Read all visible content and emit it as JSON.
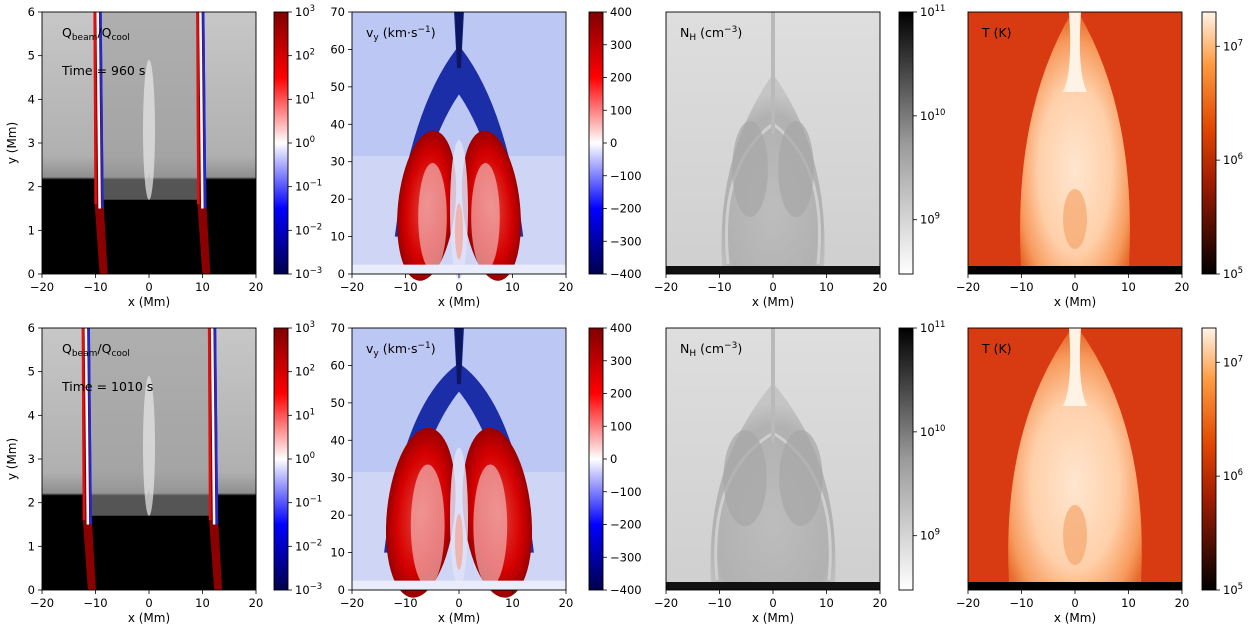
{
  "chart_data": [
    {
      "type": "heatmap",
      "panel_label": "Q<sub>beam</sub>/Q<sub>cool</sub>",
      "label_main": "Q",
      "label_sub1": "beam",
      "label_mid": "/Q",
      "label_sub2": "cool",
      "time_label": "Time = 960 s",
      "xlabel": "x (Mm)",
      "ylabel": "y (Mm)",
      "xlim": [
        -20,
        20
      ],
      "ylim": [
        0,
        6
      ],
      "xticks": [
        "−20",
        "−10",
        "0",
        "10",
        "20"
      ],
      "yticks": [
        "0",
        "1",
        "2",
        "3",
        "4",
        "5",
        "6"
      ],
      "colorbar": {
        "scale": "log",
        "range": [
          0.001,
          1000
        ],
        "ticks": [
          "10",
          "10",
          "10",
          "10",
          "10",
          "10",
          "10"
        ],
        "tick_exp": [
          "−3",
          "−2",
          "−1",
          "0",
          "1",
          "2",
          "3"
        ],
        "cmap": "seismic"
      }
    },
    {
      "type": "heatmap",
      "label_main": "v",
      "label_sub1": "y",
      "label_unit": " (km·s",
      "label_exp": "−1",
      "label_end": ")",
      "xlabel": "x (Mm)",
      "ylabel": "",
      "xlim": [
        -20,
        20
      ],
      "ylim": [
        0,
        70
      ],
      "xticks": [
        "−20",
        "−10",
        "0",
        "10",
        "20"
      ],
      "yticks": [
        "0",
        "10",
        "20",
        "30",
        "40",
        "50",
        "60",
        "70"
      ],
      "colorbar": {
        "scale": "linear",
        "range": [
          -400,
          400
        ],
        "ticks": [
          "−400",
          "−300",
          "−200",
          "−100",
          "0",
          "100",
          "200",
          "300",
          "400"
        ],
        "cmap": "seismic"
      }
    },
    {
      "type": "heatmap",
      "label_main": "N",
      "label_sub1": "H",
      "label_unit": " (cm",
      "label_exp": "−3",
      "label_end": ")",
      "xlabel": "x (Mm)",
      "xlim": [
        -20,
        20
      ],
      "xticks": [
        "−20",
        "−10",
        "0",
        "10",
        "20"
      ],
      "colorbar": {
        "scale": "log",
        "range": [
          300000000,
          100000000000
        ],
        "ticks": [
          "10",
          "10",
          "10"
        ],
        "tick_exp": [
          "9",
          "10",
          "11"
        ],
        "cmap": "Greys"
      }
    },
    {
      "type": "heatmap",
      "label_main": "T (K)",
      "xlabel": "x (Mm)",
      "xlim": [
        -20,
        20
      ],
      "xticks": [
        "−20",
        "−10",
        "0",
        "10",
        "20"
      ],
      "colorbar": {
        "scale": "log",
        "range": [
          100000,
          20000000
        ],
        "ticks": [
          "10",
          "10",
          "10"
        ],
        "tick_exp": [
          "5",
          "6",
          "7"
        ],
        "cmap": "gist_heat"
      }
    },
    {
      "type": "heatmap",
      "label_main": "Q",
      "label_sub1": "beam",
      "label_mid": "/Q",
      "label_sub2": "cool",
      "time_label": "Time = 1010 s",
      "xlabel": "x (Mm)",
      "ylabel": "y (Mm)",
      "xlim": [
        -20,
        20
      ],
      "ylim": [
        0,
        6
      ],
      "xticks": [
        "−20",
        "−10",
        "0",
        "10",
        "20"
      ],
      "yticks": [
        "0",
        "1",
        "2",
        "3",
        "4",
        "5",
        "6"
      ],
      "colorbar": {
        "scale": "log",
        "range": [
          0.001,
          1000
        ],
        "ticks": [
          "10",
          "10",
          "10",
          "10",
          "10",
          "10",
          "10"
        ],
        "tick_exp": [
          "−3",
          "−2",
          "−1",
          "0",
          "1",
          "2",
          "3"
        ],
        "cmap": "seismic"
      }
    },
    {
      "type": "heatmap",
      "label_main": "v",
      "label_sub1": "y",
      "label_unit": " (km·s",
      "label_exp": "−1",
      "label_end": ")",
      "xlabel": "x (Mm)",
      "xlim": [
        -20,
        20
      ],
      "ylim": [
        0,
        70
      ],
      "xticks": [
        "−20",
        "−10",
        "0",
        "10",
        "20"
      ],
      "yticks": [
        "0",
        "10",
        "20",
        "30",
        "40",
        "50",
        "60",
        "70"
      ],
      "colorbar": {
        "scale": "linear",
        "range": [
          -400,
          400
        ],
        "ticks": [
          "−400",
          "−300",
          "−200",
          "−100",
          "0",
          "100",
          "200",
          "300",
          "400"
        ],
        "cmap": "seismic"
      }
    },
    {
      "type": "heatmap",
      "label_main": "N",
      "label_sub1": "H",
      "label_unit": " (cm",
      "label_exp": "−3",
      "label_end": ")",
      "xlabel": "x (Mm)",
      "xlim": [
        -20,
        20
      ],
      "xticks": [
        "−20",
        "−10",
        "0",
        "10",
        "20"
      ],
      "colorbar": {
        "scale": "log",
        "range": [
          300000000,
          100000000000
        ],
        "ticks": [
          "10",
          "10",
          "10"
        ],
        "tick_exp": [
          "9",
          "10",
          "11"
        ],
        "cmap": "Greys"
      }
    },
    {
      "type": "heatmap",
      "label_main": "T (K)",
      "xlabel": "x (Mm)",
      "xlim": [
        -20,
        20
      ],
      "xticks": [
        "−20",
        "−10",
        "0",
        "10",
        "20"
      ],
      "colorbar": {
        "scale": "log",
        "range": [
          100000,
          20000000
        ],
        "ticks": [
          "10",
          "10",
          "10"
        ],
        "tick_exp": [
          "5",
          "6",
          "7"
        ],
        "cmap": "gist_heat"
      }
    }
  ]
}
